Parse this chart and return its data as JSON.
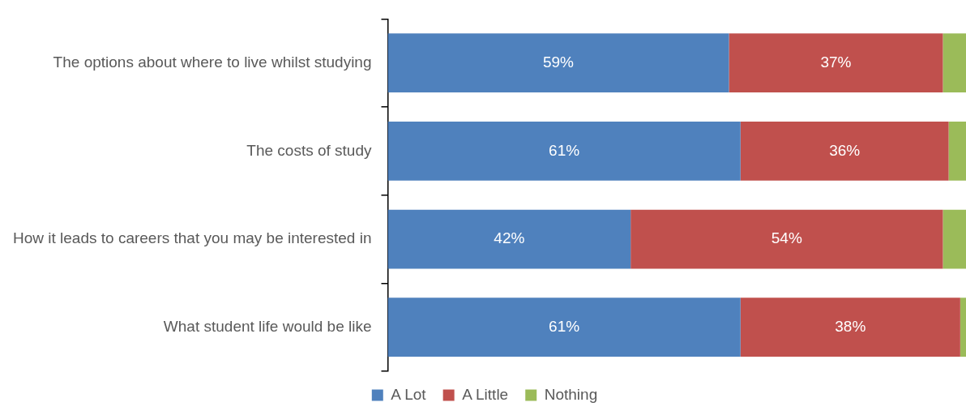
{
  "chart_data": {
    "type": "bar",
    "orientation": "horizontal",
    "stacked": true,
    "categories": [
      "The options about where to live whilst studying",
      "The costs of study",
      "How it leads to careers that you may be interested in",
      "What student life would be like"
    ],
    "series": [
      {
        "name": "A Lot",
        "color": "#4f81bd",
        "values": [
          59,
          61,
          42,
          61
        ],
        "value_labels": [
          "59%",
          "61%",
          "42%",
          "61%"
        ]
      },
      {
        "name": "A Little",
        "color": "#c0504d",
        "values": [
          37,
          36,
          54,
          38
        ],
        "value_labels": [
          "37%",
          "36%",
          "54%",
          "38%"
        ]
      },
      {
        "name": "Nothing",
        "color": "#9bbb59",
        "values": [
          4,
          3,
          4,
          1
        ],
        "value_labels": [
          null,
          null,
          null,
          null
        ]
      }
    ],
    "xlim": [
      0,
      100
    ],
    "tick_labels": "y",
    "legend": "bottom"
  }
}
